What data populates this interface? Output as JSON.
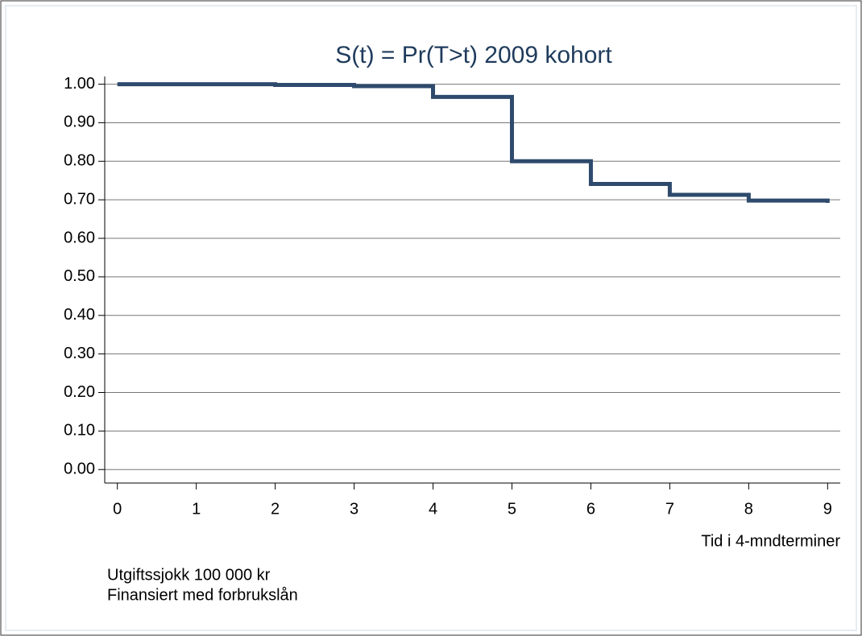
{
  "chart_data": {
    "type": "step",
    "title": "S(t) = Pr(T>t)   2009 kohort",
    "x_label": "Tid i 4-mndterminer",
    "notes": [
      "Utgiftssjokk 100 000 kr",
      "Finansiert med forbrukslån"
    ],
    "x": [
      0,
      2,
      3,
      4,
      5,
      6,
      7,
      8,
      9
    ],
    "values": [
      1.0,
      0.998,
      0.995,
      0.967,
      0.8,
      0.741,
      0.713,
      0.698,
      0.692
    ],
    "color": "#2e4a6d",
    "xlim": [
      -0.16,
      9.16
    ],
    "xticks": [
      0,
      1,
      2,
      3,
      4,
      5,
      6,
      7,
      8,
      9
    ],
    "ylim": [
      -0.035,
      1.02
    ],
    "yticks": [
      {
        "value": 0,
        "label": "0.00"
      },
      {
        "value": 0.1,
        "label": "0.10"
      },
      {
        "value": 0.2,
        "label": "0.20"
      },
      {
        "value": 0.3,
        "label": "0.30"
      },
      {
        "value": 0.4,
        "label": "0.40"
      },
      {
        "value": 0.5,
        "label": "0.50"
      },
      {
        "value": 0.6,
        "label": "0.60"
      },
      {
        "value": 0.7,
        "label": "0.70"
      },
      {
        "value": 0.8,
        "label": "0.80"
      },
      {
        "value": 0.9,
        "label": "0.90"
      },
      {
        "value": 1.0,
        "label": "1.00"
      }
    ],
    "grid": true
  }
}
